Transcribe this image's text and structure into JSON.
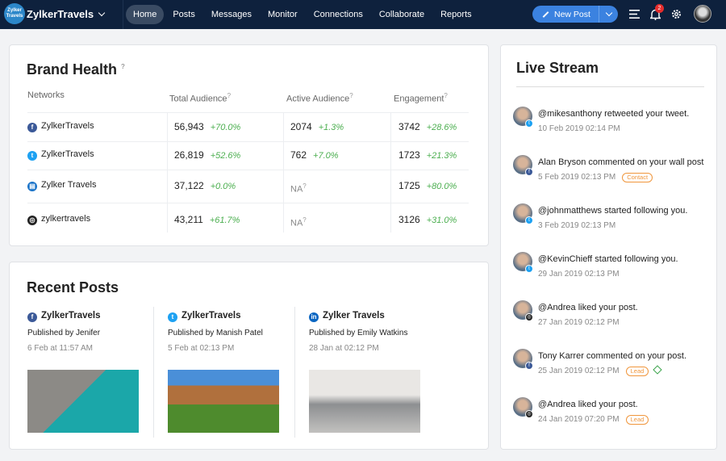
{
  "header": {
    "logo_text": "Zylker Travels",
    "brand": "ZylkerTravels",
    "nav": [
      "Home",
      "Posts",
      "Messages",
      "Monitor",
      "Connections",
      "Collaborate",
      "Reports"
    ],
    "active_nav": "Home",
    "new_post": "New Post",
    "notification_count": "2"
  },
  "brand_health": {
    "title": "Brand Health",
    "columns": [
      "Networks",
      "Total Audience",
      "Active Audience",
      "Engagement"
    ],
    "rows": [
      {
        "network": "facebook",
        "name": "ZylkerTravels",
        "total": "56,943",
        "total_pct": "+70.0%",
        "active": "2074",
        "active_pct": "+1.3%",
        "eng": "3742",
        "eng_pct": "+28.6%"
      },
      {
        "network": "twitter",
        "name": "ZylkerTravels",
        "total": "26,819",
        "total_pct": "+52.6%",
        "active": "762",
        "active_pct": "+7.0%",
        "eng": "1723",
        "eng_pct": "+21.3%"
      },
      {
        "network": "gmb",
        "name": "Zylker Travels",
        "total": "37,122",
        "total_pct": "+0.0%",
        "active": "NA",
        "active_pct": "",
        "eng": "1725",
        "eng_pct": "+80.0%"
      },
      {
        "network": "instagram",
        "name": "zylkertravels",
        "total": "43,211",
        "total_pct": "+61.7%",
        "active": "NA",
        "active_pct": "",
        "eng": "3126",
        "eng_pct": "+31.0%"
      }
    ]
  },
  "recent_posts": {
    "title": "Recent Posts",
    "posts": [
      {
        "network": "facebook",
        "name": "ZylkerTravels",
        "by": "Published by Jenifer",
        "date": "6 Feb at 11:57 AM"
      },
      {
        "network": "twitter",
        "name": "ZylkerTravels",
        "by": "Published by Manish Patel",
        "date": "5 Feb at 02:13 PM"
      },
      {
        "network": "linkedin",
        "name": "Zylker Travels",
        "by": "Published by Emily Watkins",
        "date": "28 Jan at 02:12 PM"
      }
    ]
  },
  "live_stream": {
    "title": "Live Stream",
    "items": [
      {
        "text": "@mikesanthony retweeted your tweet.",
        "date": "10 Feb 2019 02:14 PM",
        "network": "twitter",
        "tag": ""
      },
      {
        "text": "Alan Bryson commented on your wall post",
        "date": "5 Feb 2019 02:13 PM",
        "network": "facebook",
        "tag": "Contact"
      },
      {
        "text": "@johnmatthews started following you.",
        "date": "3 Feb 2019 02:13 PM",
        "network": "twitter",
        "tag": ""
      },
      {
        "text": "@KevinChieff started following you.",
        "date": "29 Jan 2019 02:13 PM",
        "network": "twitter",
        "tag": ""
      },
      {
        "text": "@Andrea liked your post.",
        "date": "27 Jan 2019 02:12 PM",
        "network": "instagram",
        "tag": ""
      },
      {
        "text": "Tony Karrer commented on your post.",
        "date": "25 Jan 2019 02:12 PM",
        "network": "facebook",
        "tag": "Lead"
      },
      {
        "text": "@Andrea liked your post.",
        "date": "24 Jan 2019 07:20 PM",
        "network": "instagram",
        "tag": "Lead"
      }
    ]
  },
  "colors": {
    "header": "#0e213d",
    "accent": "#3b82e0",
    "positive": "#4caf50",
    "tag": "#f0963c"
  }
}
